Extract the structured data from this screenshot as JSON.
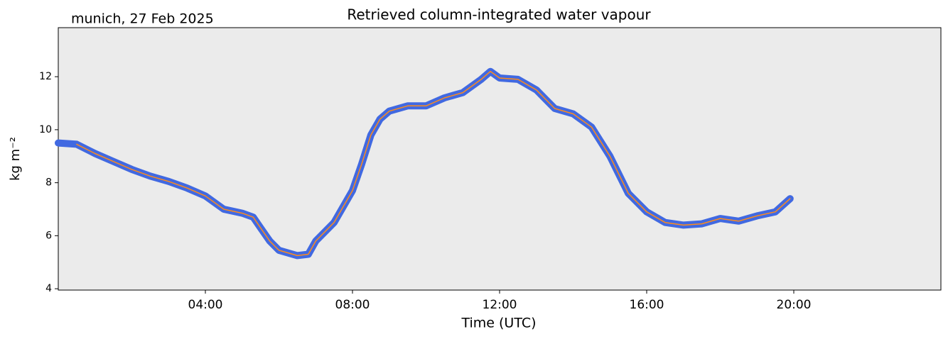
{
  "chart_data": {
    "type": "line",
    "title": "Retrieved column-integrated water vapour",
    "subtitle": "munich, 27 Feb 2025",
    "x_label": "Time (UTC)",
    "y_label": "kg m⁻²",
    "x": [
      0,
      0.5,
      1.0,
      1.5,
      2.0,
      2.5,
      3.0,
      3.5,
      4.0,
      4.5,
      5.0,
      5.3,
      5.5,
      5.75,
      6.0,
      6.5,
      6.8,
      7.0,
      7.5,
      8.0,
      8.25,
      8.5,
      8.75,
      9.0,
      9.5,
      10.0,
      10.5,
      11.0,
      11.5,
      11.75,
      12.0,
      12.5,
      13.0,
      13.5,
      14.0,
      14.5,
      15.0,
      15.5,
      16.0,
      16.5,
      17.0,
      17.5,
      18.0,
      18.5,
      19.0,
      19.5,
      19.9
    ],
    "series": [
      {
        "color": "#4169e1",
        "values": [
          9.5,
          9.45,
          9.1,
          8.8,
          8.5,
          8.25,
          8.05,
          7.8,
          7.5,
          7.0,
          6.85,
          6.7,
          6.3,
          5.8,
          5.45,
          5.25,
          5.3,
          5.8,
          6.5,
          7.7,
          8.7,
          9.8,
          10.4,
          10.7,
          10.9,
          10.9,
          11.2,
          11.4,
          11.9,
          12.2,
          11.95,
          11.9,
          11.5,
          10.8,
          10.6,
          10.1,
          9.0,
          7.6,
          6.9,
          6.5,
          6.4,
          6.45,
          6.65,
          6.55,
          6.75,
          6.9,
          7.4
        ]
      },
      {
        "color": "#ff8c1a",
        "values": [
          null,
          9.45,
          9.1,
          8.8,
          8.5,
          8.25,
          8.05,
          7.8,
          7.5,
          7.0,
          6.85,
          6.7,
          6.3,
          5.8,
          5.45,
          5.25,
          5.3,
          5.8,
          6.5,
          7.7,
          8.7,
          9.8,
          10.4,
          10.7,
          10.9,
          10.9,
          11.2,
          11.4,
          11.9,
          12.2,
          11.95,
          11.9,
          11.5,
          10.8,
          10.6,
          10.1,
          9.0,
          7.6,
          6.9,
          6.5,
          6.4,
          6.45,
          6.65,
          6.55,
          6.75,
          6.9,
          7.4
        ]
      }
    ],
    "xlim": [
      0,
      24
    ],
    "xticks": [
      {
        "value": 4,
        "label": "04:00"
      },
      {
        "value": 8,
        "label": "08:00"
      },
      {
        "value": 12,
        "label": "12:00"
      },
      {
        "value": 16,
        "label": "16:00"
      },
      {
        "value": 20,
        "label": "20:00"
      }
    ],
    "ylim": [
      3.95,
      13.85
    ],
    "yticks": [
      4,
      6,
      8,
      10,
      12
    ],
    "background": "#ebebeb"
  }
}
